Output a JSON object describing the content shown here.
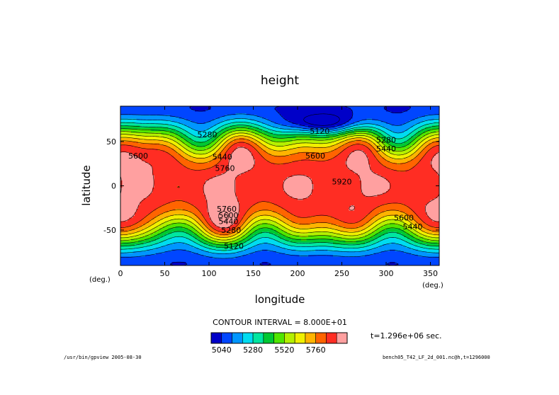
{
  "chart_data": {
    "type": "heatmap",
    "title": "height",
    "xlabel": "longitude",
    "ylabel": "latitude",
    "x_unit": "(deg.)",
    "y_unit": "(deg.)",
    "xlim": [
      0,
      360
    ],
    "ylim": [
      -90,
      90
    ],
    "x_ticks": [
      0,
      50,
      100,
      150,
      200,
      250,
      300,
      350
    ],
    "y_ticks": [
      50,
      0,
      -50
    ],
    "contour_interval_text": "CONTOUR INTERVAL = 8.000E+01",
    "time_text": "t=1.296e+06 sec.",
    "colorbar": {
      "levels": [
        4960,
        5040,
        5120,
        5200,
        5280,
        5360,
        5440,
        5520,
        5600,
        5680,
        5760,
        5840,
        5920,
        6000
      ],
      "tick_labels": [
        5040,
        5280,
        5520,
        5760
      ],
      "colors": [
        "#0000c8",
        "#0046ff",
        "#0096ff",
        "#00dcf0",
        "#00e6a0",
        "#00c832",
        "#50e600",
        "#b4f000",
        "#f0f000",
        "#ffb400",
        "#ff6400",
        "#ff2d23",
        "#ffa0a0"
      ]
    },
    "contour_labels": [
      {
        "lon": 225,
        "lat": 62,
        "value": "5120"
      },
      {
        "lon": 300,
        "lat": 52,
        "value": "5280"
      },
      {
        "lon": 300,
        "lat": 42,
        "value": "5440"
      },
      {
        "lon": 98,
        "lat": 58,
        "value": "5280"
      },
      {
        "lon": 115,
        "lat": 33,
        "value": "5440"
      },
      {
        "lon": 20,
        "lat": 34,
        "value": "5600"
      },
      {
        "lon": 220,
        "lat": 34,
        "value": "5600"
      },
      {
        "lon": 118,
        "lat": 20,
        "value": "5760"
      },
      {
        "lon": 250,
        "lat": 5,
        "value": "5920"
      },
      {
        "lon": 120,
        "lat": -26,
        "value": "5760"
      },
      {
        "lon": 122,
        "lat": -33,
        "value": "5600"
      },
      {
        "lon": 122,
        "lat": -40,
        "value": "5440"
      },
      {
        "lon": 125,
        "lat": -50,
        "value": "5280"
      },
      {
        "lon": 128,
        "lat": -68,
        "value": "5120"
      },
      {
        "lon": 320,
        "lat": -36,
        "value": "5600"
      },
      {
        "lon": 330,
        "lat": -46,
        "value": "5440"
      }
    ]
  },
  "footer": {
    "left": "/usr/bin/gpview  2005-08-30",
    "right": "bench05_T42_LF_2d_001.nc@h,t=1296000"
  }
}
